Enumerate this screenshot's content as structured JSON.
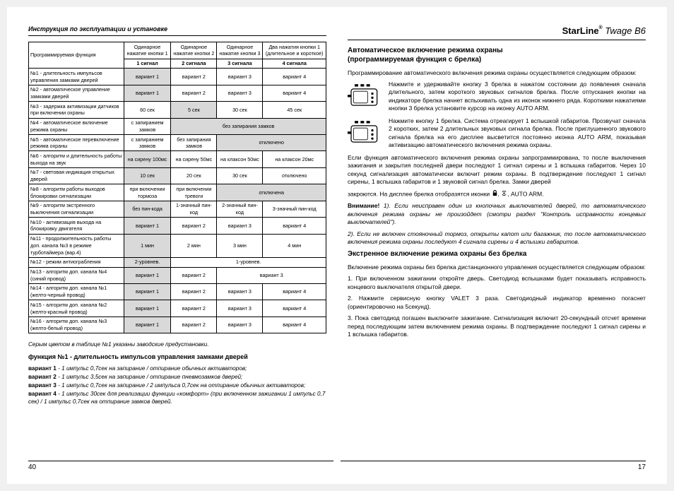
{
  "left": {
    "header": "Инструкция по эксплуатации и установке",
    "pageNum": "40",
    "table": {
      "headCol0": "Программируемая функция",
      "headRow1": [
        "Одинарное нажатие кнопки 1",
        "Одинарное нажатие кнопки 2",
        "Одинарное нажатие кнопки 3",
        "Два нажатия кнопки 1 (длительное и короткое)"
      ],
      "headRow2": [
        "1 сигнал",
        "2 сигнала",
        "3 сигнала",
        "4 сигнала"
      ],
      "rows": [
        {
          "n": "№1 - длительность импульсов управления замками дверей",
          "c": [
            "вариант 1",
            "вариант 2",
            "вариант 3",
            "вариант 4"
          ],
          "g": [
            0
          ]
        },
        {
          "n": "№2 - автоматическое управление замками дверей",
          "c": [
            "вариант 1",
            "вариант 2",
            "вариант 3",
            "вариант 4"
          ],
          "g": [
            0
          ]
        },
        {
          "n": "№3 - задержка активизации датчиков при включении охраны",
          "c": [
            "60 сек",
            "5 сек",
            "30 сек",
            "45 сек"
          ],
          "g": [
            1
          ]
        },
        {
          "n": "№4 - автоматическое включение режима охраны",
          "c": [
            "с запиранием замков",
            "без запирания замков"
          ],
          "span": [
            1,
            3
          ],
          "g": [
            1
          ]
        },
        {
          "n": "№5 - автоматическое перевключение режима охраны",
          "c": [
            "с запиранием замков",
            "без запирания замков",
            "отключено"
          ],
          "span": [
            1,
            1,
            2
          ],
          "g": [
            2
          ]
        },
        {
          "n": "№6 - алгоритм и длительность работы выхода на звук",
          "c": [
            "на сирену 100мс",
            "на сирену 50мс",
            "на клаксон 50мс",
            "на клаксон 20мс"
          ],
          "g": [
            0
          ]
        },
        {
          "n": "№7 - световая индикация открытых дверей",
          "c": [
            "10 сек",
            "20 сек",
            "30 сек",
            "отключено"
          ],
          "g": [
            0
          ]
        },
        {
          "n": "№8 - алгоритм работы выходов блокировки сигнализации",
          "c": [
            "при включении тормоза",
            "при включении тревоги",
            "отключена"
          ],
          "span": [
            1,
            1,
            2
          ],
          "g": [
            2
          ]
        },
        {
          "n": "№9 - алгоритм экстренного выключения сигнализации",
          "c": [
            "без пин-кода",
            "1-значный пин-код",
            "2-значный пин-код",
            "3-значный пин-код"
          ],
          "g": [
            0
          ]
        },
        {
          "n": "№10 - активизация выхода на блокировку двигателя",
          "c": [
            "вариант 1",
            "вариант 2",
            "вариант 3",
            "вариант 4"
          ],
          "g": [
            0
          ]
        },
        {
          "n": "№11 - продолжительность работы доп. канала №3 в режиме турботаймера (вар.4)",
          "c": [
            "1 мин",
            "2 мин",
            "3 мин",
            "4 мин"
          ],
          "g": [
            0
          ]
        },
        {
          "n": "№12 - режим антиограбления",
          "c": [
            "2-уровнев.",
            "1-уровнев."
          ],
          "span": [
            1,
            3
          ],
          "g": [
            0
          ]
        },
        {
          "n": "№13 - алгоритм доп. канала №4 (синий провод)",
          "c": [
            "вариант 1",
            "вариант 2",
            "вариант 3"
          ],
          "span": [
            1,
            1,
            2
          ],
          "g": [
            0
          ]
        },
        {
          "n": "№14 - алгоритм доп. канала №1 (желто-черный провод)",
          "c": [
            "вариант 1",
            "вариант 2",
            "вариант 3",
            "вариант 4"
          ],
          "g": [
            0
          ]
        },
        {
          "n": "№15 - алгоритм доп. канала №2 (желто-красный провод)",
          "c": [
            "вариант 1",
            "вариант 2",
            "вариант 3",
            "вариант 4"
          ],
          "g": [
            0
          ]
        },
        {
          "n": "№16 - алгоритм доп. канала №3 (желто-белый провод)",
          "c": [
            "вариант 1",
            "вариант 2",
            "вариант 3",
            "вариант 4"
          ],
          "g": [
            0
          ]
        }
      ]
    },
    "note": "Серым цветом в таблице №1 указаны заводские предустановки.",
    "funcTitle": "функция №1 - длительность импульсов управления замками дверей",
    "variants": [
      {
        "b": "вариант 1",
        "t": " - 1 импульс 0,7сек на запирание / отпирание обычных активаторов;"
      },
      {
        "b": "вариант 2",
        "t": " - 1 импульс 3,5сек на запирание / отпирание пневмозамков дверей;"
      },
      {
        "b": "вариант 3",
        "t": " - 1 импульс 0,7сек на запирание / 2 импульса 0,7сек на отпирание обычных активаторов;"
      },
      {
        "b": "вариант 4",
        "t": " - 1 импульс 30сек для реализации функции «комфорт» (при включенном зажигании 1 импульс 0,7 сек) / 1 импульс 0,7сек на отпирание замков дверей."
      }
    ]
  },
  "right": {
    "brand": "StarLine",
    "model": " Twage B6",
    "pageNum": "17",
    "h1a": "Автоматическое включение режима охраны",
    "h1b": "(программируемая функция с брелка)",
    "intro": "Программирование автоматического включения режима охраны осуществляется следующим образом:",
    "step1": "Нажмите и удерживайте кнопку 3 брелка в нажатом состоянии до появления сначала длительного, затем короткого звуковых сигналов брелка. После отпускания кнопки на индикаторе брелка начнет вспыхивать одна из иконок нижнего ряда. Короткими нажатиями кнопки 3 брелка установите курсор на иконку AUTO ARM.",
    "step2": "Нажмите кнопку 1 брелка. Система отреагирует 1 вспышкой габаритов. Прозвучат сначала 2 коротких, затем 2 длительных звуковых сигнала брелка. После приглушенного звукового сигнала брелка на его дисплее высветится постоянно иконка AUTO ARM, показывая активизацию автоматического включения режима охраны.",
    "para2": "Если функция автоматического включения режима охраны запрограммирована, то после выключения зажигания и закрытия последней двери последуют 1 сигнал сирены и 1 вспышка габаритов. Через 10 секунд сигнализация автоматически включит режим охраны. В подтверждение последуют 1 сигнал сирены, 1 вспышка габаритов и 1 звуковой сигнал брелка. Замки дверей",
    "para3a": "закроются. На дисплее брелка отобразятся иконки ",
    "para3b": ", AUTO ARM.",
    "warnLabel": "Внимание!",
    "warn1": " 1). Если неисправен один из кнопочных выключателей дверей, то автоматического включения режима охраны не произойдет (смотри раздел \"Контроль исправности концевых выключателей\").",
    "warn2": "2). Если не включен стояночный тормоз, открыты капот или багажник, то после автоматического включения режима охраны последуют 4 сигнала сирены и 4 вспышки габаритов.",
    "h2": "Экстренное включение режима охраны без брелка",
    "p4": "Включение режима охраны без брелка дистанционного управления осуществляется следующим образом:",
    "p5": "1. При включенном зажигании откройте дверь. Светодиод вспышками будет показывать исправность концевого выключателя открытой двери.",
    "p6": "2. Нажмите сервисную кнопку VALET 3 раза. Светодиодный индикатор временно погаснет (ориентировочно на 5секунд).",
    "p7": "3. Пока светодиод погашен выключите зажигание. Сигнализация включит 20-секундный отсчет времени перед последующим затем включением режима охраны. В подтверждение последуют 1 сигнал сирены и 1 вспышка габаритов."
  }
}
